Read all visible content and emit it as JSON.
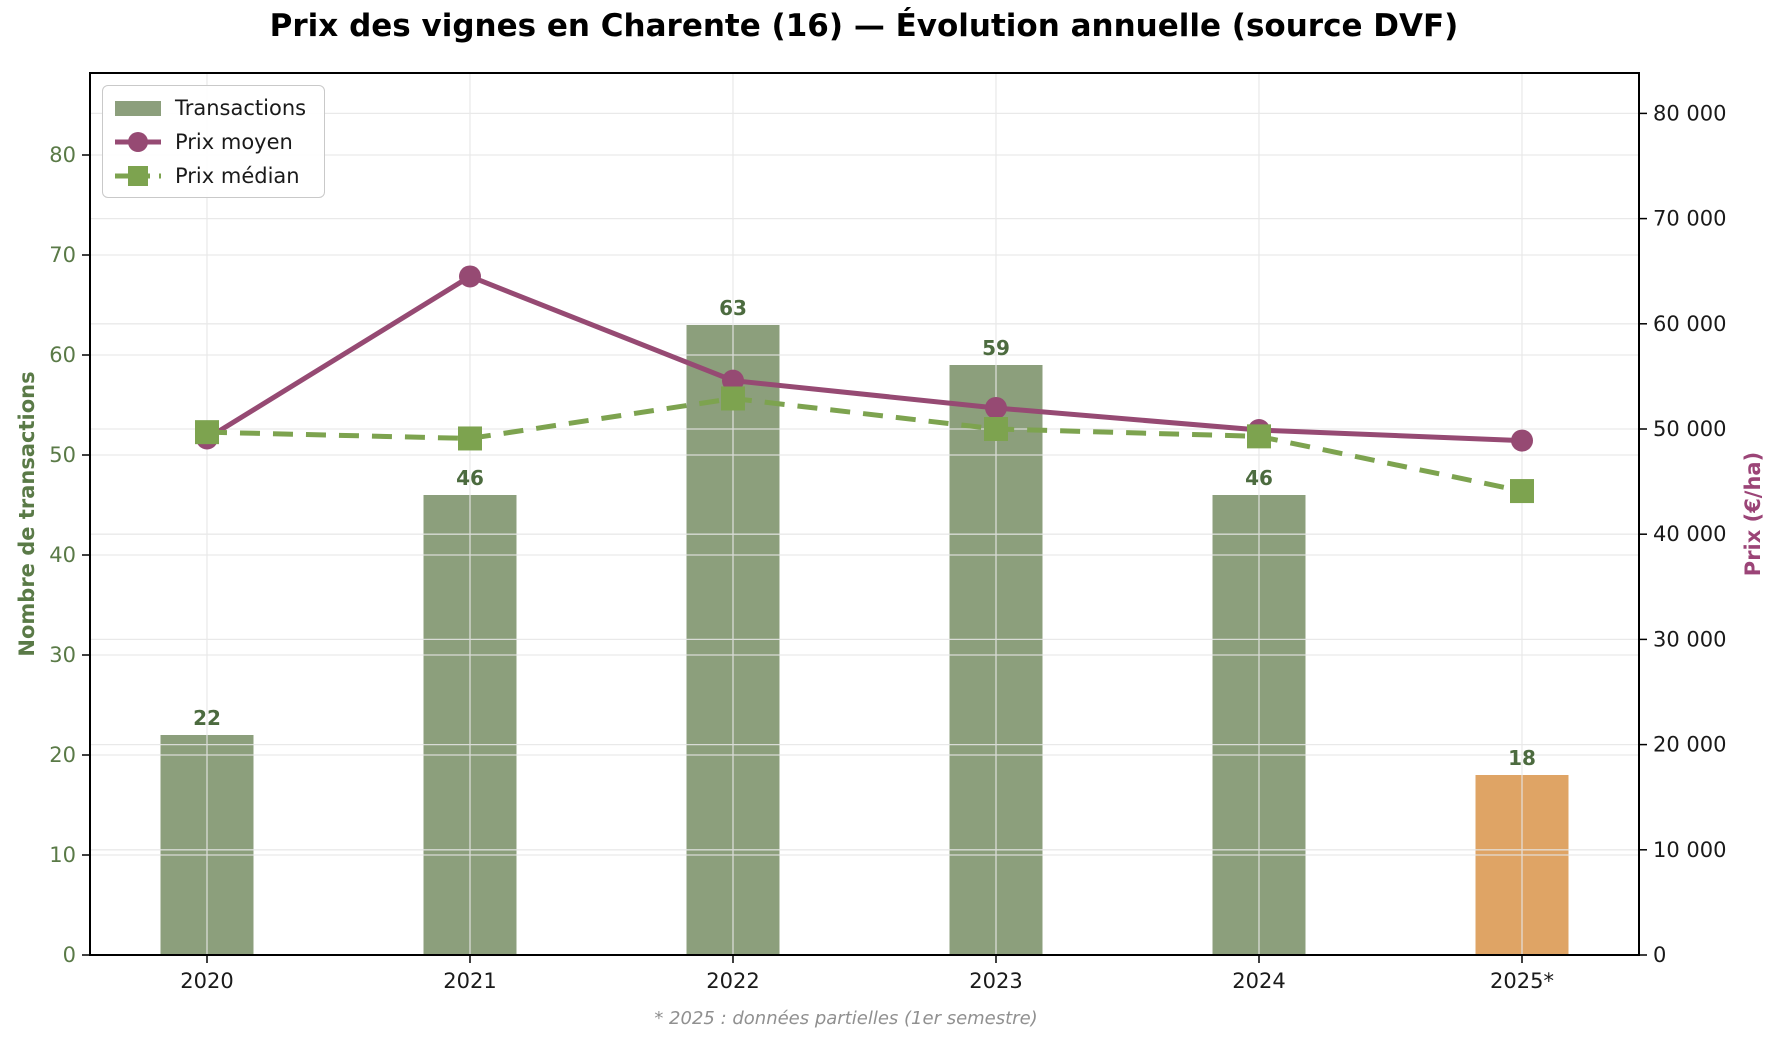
{
  "title": "Prix des vignes en Charente (16) — Évolution annuelle (source DVF)",
  "footnote": "* 2025 : données partielles (1er semestre)",
  "legend": {
    "items": [
      {
        "label": "Transactions",
        "type": "bar-swatch"
      },
      {
        "label": "Prix moyen",
        "type": "line-circle"
      },
      {
        "label": "Prix médian",
        "type": "dash-square"
      }
    ]
  },
  "axes": {
    "left": {
      "label": "Nombre de transactions",
      "tick_labels": [
        "0",
        "10",
        "20",
        "30",
        "40",
        "50",
        "60",
        "70",
        "80"
      ],
      "tick_values": [
        0,
        10,
        20,
        30,
        40,
        50,
        60,
        70,
        80
      ],
      "color": "#5a7a47"
    },
    "right": {
      "label": "Prix (€/ha)",
      "tick_labels": [
        "0",
        "10 000",
        "20 000",
        "30 000",
        "40 000",
        "50 000",
        "60 000",
        "70 000",
        "80 000"
      ],
      "tick_values": [
        0,
        10000,
        20000,
        30000,
        40000,
        50000,
        60000,
        70000,
        80000
      ],
      "color": "#9b4477"
    },
    "x": {
      "tick_labels": [
        "2020",
        "2021",
        "2022",
        "2023",
        "2024",
        "2025*"
      ]
    }
  },
  "chart_data": {
    "type": "bar+line",
    "categories": [
      "2020",
      "2021",
      "2022",
      "2023",
      "2024",
      "2025*"
    ],
    "left_ylim": [
      0,
      88.2
    ],
    "right_ylim": [
      0,
      83840
    ],
    "grid": true,
    "legend_position": "upper-left",
    "series": [
      {
        "name": "Transactions",
        "type": "bar",
        "axis": "left",
        "values": [
          22,
          46,
          63,
          59,
          46,
          18
        ],
        "bar_colors": [
          "#8c9f7c",
          "#8c9f7c",
          "#8c9f7c",
          "#8c9f7c",
          "#8c9f7c",
          "#dfa465"
        ],
        "label_color": "#4c6b3f"
      },
      {
        "name": "Prix moyen",
        "type": "line",
        "axis": "right",
        "marker": "circle",
        "values": [
          49100,
          64500,
          54600,
          52000,
          49900,
          48900
        ],
        "color": "#964a73"
      },
      {
        "name": "Prix médian",
        "type": "line-dashed",
        "axis": "right",
        "marker": "square",
        "values": [
          49700,
          49100,
          52900,
          50000,
          49300,
          44100
        ],
        "color": "#7da34f"
      }
    ]
  },
  "colors": {
    "bar_green": "#8c9f7c",
    "bar_orange": "#dfa465",
    "line_purple": "#964a73",
    "line_green": "#7da34f",
    "grid": "#e6e6e6",
    "spine": "#000000",
    "tick_text": "#1a1a1a",
    "footnote_gray": "#909090"
  }
}
